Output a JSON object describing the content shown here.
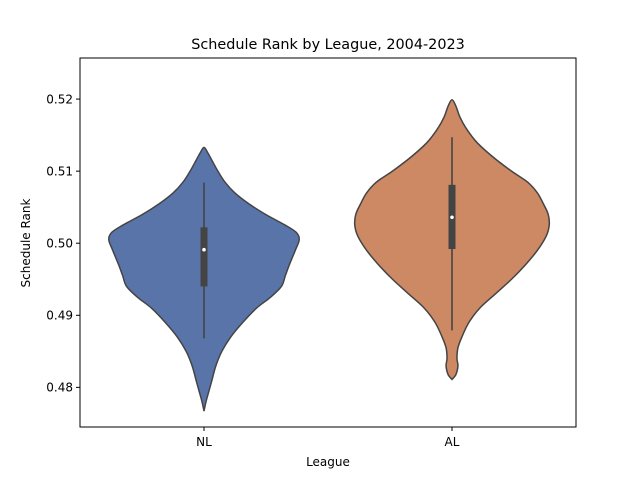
{
  "chart_data": {
    "type": "violin",
    "title": "Schedule Rank by League, 2004-2023",
    "xlabel": "League",
    "ylabel": "Schedule Rank",
    "ylim": [
      0.4745,
      0.5257
    ],
    "yticks": [
      "0.48",
      "0.49",
      "0.50",
      "0.51",
      "0.52"
    ],
    "grid": false,
    "legend": "none",
    "categories": [
      "NL",
      "AL"
    ],
    "series": [
      {
        "category": "NL",
        "color": "#5874a9",
        "outline": "#444444",
        "median": 0.4991,
        "q1": 0.494,
        "q3": 0.5022,
        "whisker_low": 0.4868,
        "whisker_high": 0.5084,
        "density": [
          [
            0.4767,
            0.0
          ],
          [
            0.478,
            0.02
          ],
          [
            0.4795,
            0.05
          ],
          [
            0.481,
            0.08
          ],
          [
            0.483,
            0.12
          ],
          [
            0.485,
            0.18
          ],
          [
            0.487,
            0.27
          ],
          [
            0.489,
            0.39
          ],
          [
            0.491,
            0.53
          ],
          [
            0.4925,
            0.67
          ],
          [
            0.494,
            0.78
          ],
          [
            0.4955,
            0.82
          ],
          [
            0.497,
            0.86
          ],
          [
            0.499,
            0.92
          ],
          [
            0.5005,
            0.96
          ],
          [
            0.5015,
            0.93
          ],
          [
            0.5025,
            0.82
          ],
          [
            0.504,
            0.62
          ],
          [
            0.5055,
            0.45
          ],
          [
            0.507,
            0.31
          ],
          [
            0.5085,
            0.21
          ],
          [
            0.51,
            0.14
          ],
          [
            0.5115,
            0.08
          ],
          [
            0.5125,
            0.04
          ],
          [
            0.5133,
            0.0
          ]
        ]
      },
      {
        "category": "AL",
        "color": "#cc8963",
        "outline": "#444444",
        "median": 0.5036,
        "q1": 0.4992,
        "q3": 0.5081,
        "whisker_low": 0.4879,
        "whisker_high": 0.5147,
        "density": [
          [
            0.4811,
            0.0
          ],
          [
            0.4818,
            0.04
          ],
          [
            0.483,
            0.06
          ],
          [
            0.484,
            0.05
          ],
          [
            0.4855,
            0.06
          ],
          [
            0.487,
            0.1
          ],
          [
            0.489,
            0.17
          ],
          [
            0.491,
            0.28
          ],
          [
            0.493,
            0.44
          ],
          [
            0.495,
            0.6
          ],
          [
            0.497,
            0.74
          ],
          [
            0.499,
            0.86
          ],
          [
            0.501,
            0.95
          ],
          [
            0.5025,
            0.98
          ],
          [
            0.504,
            0.97
          ],
          [
            0.5055,
            0.92
          ],
          [
            0.507,
            0.86
          ],
          [
            0.5085,
            0.76
          ],
          [
            0.51,
            0.6
          ],
          [
            0.512,
            0.41
          ],
          [
            0.514,
            0.25
          ],
          [
            0.516,
            0.14
          ],
          [
            0.5175,
            0.08
          ],
          [
            0.519,
            0.04
          ],
          [
            0.5199,
            0.0
          ]
        ]
      }
    ]
  }
}
